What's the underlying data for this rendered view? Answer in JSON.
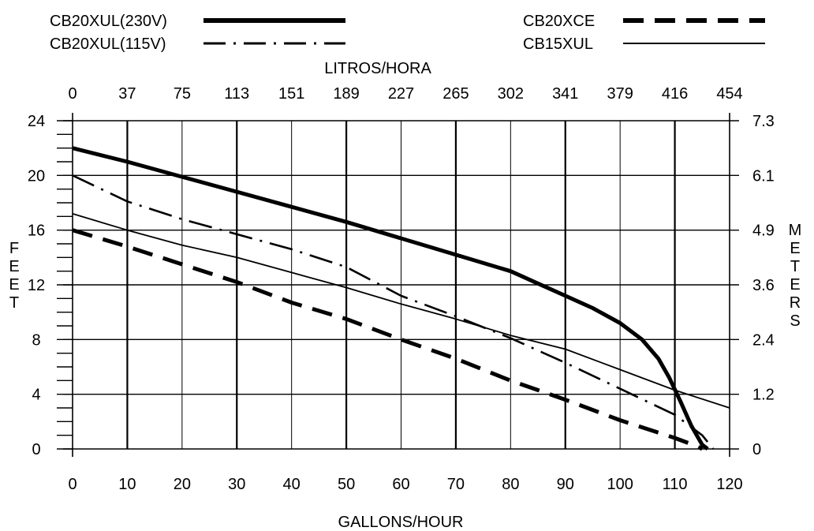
{
  "chart_data": {
    "type": "line",
    "xlabel": "GALLONS/HOUR",
    "x2label": "LITROS/HORA",
    "ylabel": "FEET",
    "y2label": "METERS",
    "xlim": [
      0,
      120
    ],
    "ylim": [
      0,
      24
    ],
    "grid": true,
    "legend_position": "top",
    "x_ticks": [
      "0",
      "10",
      "20",
      "30",
      "40",
      "50",
      "60",
      "70",
      "80",
      "90",
      "100",
      "110",
      "120"
    ],
    "x2_ticks": [
      "0",
      "37",
      "75",
      "113",
      "151",
      "189",
      "227",
      "265",
      "302",
      "341",
      "379",
      "416",
      "454"
    ],
    "y_ticks": [
      "0",
      "4",
      "8",
      "12",
      "16",
      "20",
      "24"
    ],
    "y2_ticks": [
      "0",
      "1.2",
      "2.4",
      "3.6",
      "4.9",
      "6.1",
      "7.3"
    ],
    "series": [
      {
        "name": "CB20XUL(230V)",
        "style": "thick-solid",
        "x": [
          0,
          10,
          20,
          30,
          40,
          50,
          60,
          70,
          80,
          85,
          90,
          95,
          100,
          104,
          107,
          109,
          111,
          113,
          115,
          116
        ],
        "y": [
          22,
          21.0,
          19.9,
          18.8,
          17.7,
          16.6,
          15.4,
          14.2,
          13.0,
          12.1,
          11.2,
          10.3,
          9.2,
          8.0,
          6.6,
          5.2,
          3.5,
          1.7,
          0.3,
          0
        ]
      },
      {
        "name": "CB20XUL(115V)",
        "style": "dash-dot",
        "x": [
          0,
          10,
          20,
          30,
          40,
          50,
          60,
          70,
          80,
          90,
          100,
          110,
          115,
          117
        ],
        "y": [
          20,
          18.1,
          16.8,
          15.7,
          14.6,
          13.3,
          11.2,
          9.7,
          8.1,
          6.3,
          4.4,
          2.5,
          1.0,
          0
        ]
      },
      {
        "name": "CB20XCE",
        "style": "thick-dashed",
        "x": [
          0,
          10,
          20,
          30,
          40,
          50,
          60,
          70,
          80,
          90,
          100,
          110,
          114,
          115
        ],
        "y": [
          16,
          14.8,
          13.5,
          12.2,
          10.7,
          9.5,
          8.0,
          6.6,
          5.0,
          3.6,
          2.1,
          0.8,
          0.2,
          0
        ]
      },
      {
        "name": "CB15XUL",
        "style": "thin-solid",
        "x": [
          0,
          10,
          20,
          30,
          40,
          50,
          60,
          70,
          80,
          90,
          100,
          110,
          120
        ],
        "y": [
          17.2,
          16.0,
          14.9,
          14.0,
          12.9,
          11.8,
          10.6,
          9.5,
          8.3,
          7.3,
          5.8,
          4.3,
          3.0
        ]
      }
    ]
  }
}
